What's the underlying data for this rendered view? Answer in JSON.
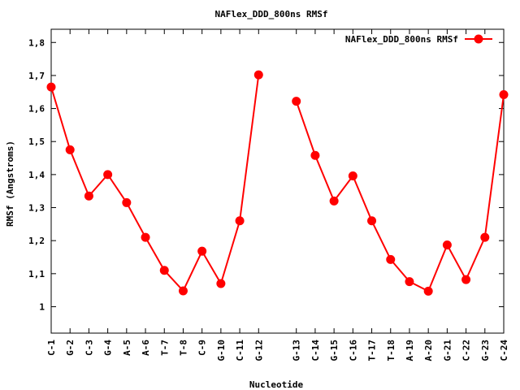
{
  "chart_data": {
    "type": "line",
    "title": "NAFlex_DDD_800ns RMSf",
    "xlabel": "Nucleotide",
    "ylabel": "RMSf (Angstroms)",
    "ylim": [
      0.92,
      1.84
    ],
    "yticks": [
      1,
      1.1,
      1.2,
      1.3,
      1.4,
      1.5,
      1.6,
      1.7,
      1.8
    ],
    "ytick_labels": [
      "1",
      "1,1",
      "1,2",
      "1,3",
      "1,4",
      "1,5",
      "1,6",
      "1,7",
      "1,8"
    ],
    "legend_position": "top-right",
    "categories": [
      "C-1",
      "G-2",
      "C-3",
      "G-4",
      "A-5",
      "A-6",
      "T-7",
      "T-8",
      "C-9",
      "G-10",
      "C-11",
      "G-12",
      "G-13",
      "C-14",
      "G-15",
      "C-16",
      "T-17",
      "T-18",
      "A-19",
      "A-20",
      "G-21",
      "C-22",
      "G-23",
      "C-24"
    ],
    "x": [
      1,
      2,
      3,
      4,
      5,
      6,
      7,
      8,
      9,
      10,
      11,
      12,
      14,
      15,
      16,
      17,
      18,
      19,
      20,
      21,
      22,
      23,
      24,
      25
    ],
    "series": [
      {
        "name": "NAFlex_DDD_800ns RMSf",
        "color": "#ff0000",
        "segments": [
          [
            1.665,
            1.475,
            1.335,
            1.4,
            1.315,
            1.21,
            1.11,
            1.048,
            1.168,
            1.07,
            1.26,
            1.702
          ],
          [
            1.622,
            1.458,
            1.32,
            1.396,
            1.26,
            1.143,
            1.076,
            1.047,
            1.187,
            1.082,
            1.21,
            1.642
          ]
        ]
      }
    ],
    "grid": false
  }
}
